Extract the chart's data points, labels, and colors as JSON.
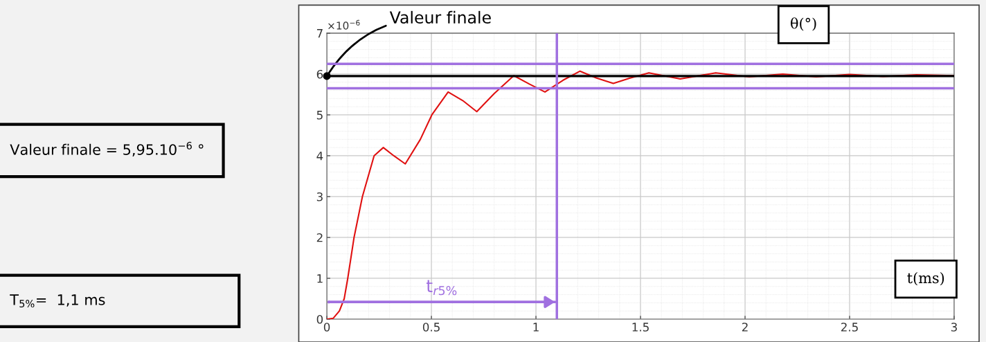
{
  "chart_data": {
    "type": "line",
    "xlabel": "t(ms)",
    "ylabel": "θ(°)",
    "x": [
      0,
      0.03,
      0.06,
      0.083,
      0.1,
      0.13,
      0.17,
      0.226,
      0.27,
      0.32,
      0.375,
      0.447,
      0.502,
      0.58,
      0.65,
      0.717,
      0.8,
      0.894,
      0.97,
      1.043,
      1.13,
      1.21,
      1.29,
      1.37,
      1.45,
      1.54,
      1.69,
      1.86,
      2.02,
      2.18,
      2.34,
      2.5,
      2.66,
      2.82,
      3
    ],
    "series": [
      {
        "color": "#e01010",
        "values": [
          0,
          0.02,
          0.2,
          0.5,
          1,
          2,
          3,
          4,
          4.2,
          4.0,
          3.8,
          4.4,
          5.0,
          5.56,
          5.35,
          5.08,
          5.52,
          5.96,
          5.75,
          5.56,
          5.85,
          6.07,
          5.9,
          5.77,
          5.9,
          6.03,
          5.88,
          6.03,
          5.93,
          6.0,
          5.93,
          5.99,
          5.94,
          5.98,
          5.96
        ]
      }
    ],
    "xlim": [
      0,
      3
    ],
    "ylim": [
      0,
      7
    ],
    "xticks": [
      0,
      0.5,
      1,
      1.5,
      2,
      2.5,
      3
    ],
    "yticks": [
      0,
      1,
      2,
      3,
      4,
      5,
      6,
      7
    ],
    "grid": true,
    "ref_lines": [
      {
        "axis": "y",
        "value": 5.95,
        "color": "#000000"
      },
      {
        "axis": "y",
        "value": 6.25,
        "color": "#a070e0"
      },
      {
        "axis": "y",
        "value": 5.65,
        "color": "#a070e0"
      },
      {
        "axis": "x",
        "value": 1.1,
        "color": "#a070e0"
      }
    ],
    "annotations": [
      "×10$^{−6}$",
      {
        "text": "Valeur finale",
        "x": 0,
        "y": 5.95
      },
      "t$_{r5%}$",
      "Valeur finale = 5,95.10$^{−6}$ °",
      "T$_{5%}$=  1,1 ms"
    ]
  }
}
